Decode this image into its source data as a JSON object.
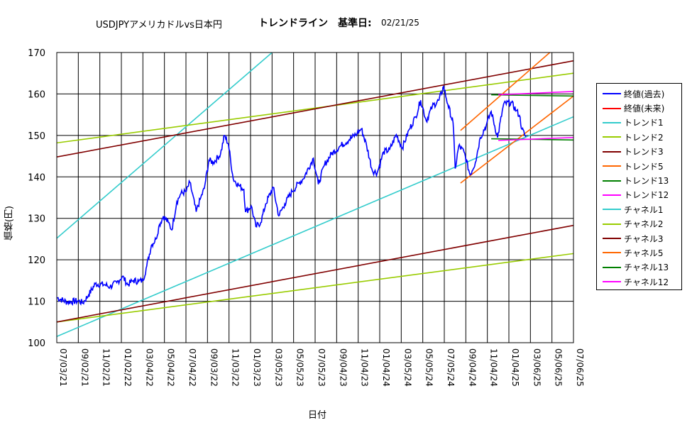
{
  "title": {
    "main": "USDJPYアメリカドルvs日本円",
    "sub": "トレンドライン　基準日:",
    "date": "02/21/25"
  },
  "chart_data": {
    "type": "line",
    "xlabel": "日付",
    "ylabel": "価格(円)",
    "ylim": [
      100,
      170
    ],
    "yticks": [
      100,
      110,
      120,
      130,
      140,
      150,
      160,
      170
    ],
    "x_tick_labels": [
      "07/03/21",
      "09/02/21",
      "11/02/21",
      "01/02/22",
      "03/04/22",
      "05/04/22",
      "07/04/22",
      "09/03/22",
      "11/03/22",
      "01/03/23",
      "03/05/23",
      "05/05/23",
      "07/05/23",
      "09/04/23",
      "11/04/23",
      "01/04/24",
      "03/05/24",
      "05/05/24",
      "07/05/24",
      "09/04/24",
      "11/04/24",
      "01/04/25",
      "03/06/25",
      "05/06/25",
      "07/06/25"
    ],
    "grid": true,
    "legend_position": "right",
    "price_series": {
      "name": "終値(過去)",
      "color": "#0000ff",
      "points": [
        [
          "07/03/21",
          110.9
        ],
        [
          "08/01/21",
          109.8
        ],
        [
          "09/01/21",
          110.1
        ],
        [
          "09/15/21",
          109.6
        ],
        [
          "10/01/21",
          111.5
        ],
        [
          "10/20/21",
          114.2
        ],
        [
          "11/15/21",
          114.0
        ],
        [
          "12/01/21",
          113.5
        ],
        [
          "12/20/21",
          114.5
        ],
        [
          "01/05/22",
          116.0
        ],
        [
          "01/20/22",
          114.0
        ],
        [
          "02/05/22",
          115.0
        ],
        [
          "02/20/22",
          114.8
        ],
        [
          "03/04/22",
          115.0
        ],
        [
          "03/15/22",
          118.5
        ],
        [
          "03/28/22",
          123.5
        ],
        [
          "04/10/22",
          125.0
        ],
        [
          "04/20/22",
          128.5
        ],
        [
          "05/01/22",
          130.5
        ],
        [
          "05/15/22",
          129.0
        ],
        [
          "05/25/22",
          127.2
        ],
        [
          "06/08/22",
          134.0
        ],
        [
          "06/20/22",
          136.0
        ],
        [
          "07/05/22",
          136.5
        ],
        [
          "07/15/22",
          138.7
        ],
        [
          "08/02/22",
          131.6
        ],
        [
          "08/15/22",
          135.0
        ],
        [
          "08/25/22",
          137.2
        ],
        [
          "09/07/22",
          144.0
        ],
        [
          "09/20/22",
          143.5
        ],
        [
          "10/10/22",
          145.5
        ],
        [
          "10/21/22",
          150.0
        ],
        [
          "11/01/22",
          148.0
        ],
        [
          "11/15/22",
          139.5
        ],
        [
          "11/30/22",
          138.0
        ],
        [
          "12/15/22",
          137.0
        ],
        [
          "12/20/22",
          131.5
        ],
        [
          "01/05/23",
          133.0
        ],
        [
          "01/18/23",
          128.0
        ],
        [
          "02/01/23",
          129.0
        ],
        [
          "02/15/23",
          133.5
        ],
        [
          "03/08/23",
          137.5
        ],
        [
          "03/24/23",
          130.6
        ],
        [
          "04/10/23",
          133.5
        ],
        [
          "05/01/23",
          136.5
        ],
        [
          "05/20/23",
          138.5
        ],
        [
          "06/01/23",
          139.5
        ],
        [
          "06/30/23",
          144.5
        ],
        [
          "07/14/23",
          138.2
        ],
        [
          "08/01/23",
          143.0
        ],
        [
          "08/20/23",
          145.5
        ],
        [
          "09/15/23",
          147.5
        ],
        [
          "10/10/23",
          149.0
        ],
        [
          "11/01/23",
          150.5
        ],
        [
          "11/13/23",
          151.6
        ],
        [
          "11/28/23",
          147.5
        ],
        [
          "12/14/23",
          141.5
        ],
        [
          "12/28/23",
          141.0
        ],
        [
          "01/15/24",
          146.0
        ],
        [
          "02/01/24",
          146.5
        ],
        [
          "02/20/24",
          150.2
        ],
        [
          "03/08/24",
          147.0
        ],
        [
          "03/28/24",
          151.5
        ],
        [
          "04/15/24",
          154.5
        ],
        [
          "04/29/24",
          158.5
        ],
        [
          "05/15/24",
          153.5
        ],
        [
          "06/01/24",
          157.0
        ],
        [
          "06/20/24",
          158.5
        ],
        [
          "07/03/24",
          161.8
        ],
        [
          "07/15/24",
          157.5
        ],
        [
          "07/30/24",
          153.0
        ],
        [
          "08/05/24",
          142.0
        ],
        [
          "08/15/24",
          147.5
        ],
        [
          "08/30/24",
          146.0
        ],
        [
          "09/16/24",
          140.5
        ],
        [
          "10/01/24",
          143.5
        ],
        [
          "10/15/24",
          149.5
        ],
        [
          "11/01/24",
          152.5
        ],
        [
          "11/15/24",
          155.8
        ],
        [
          "12/03/24",
          149.5
        ],
        [
          "12/20/24",
          157.5
        ],
        [
          "01/10/25",
          158.0
        ],
        [
          "01/25/25",
          156.0
        ],
        [
          "02/03/25",
          154.8
        ],
        [
          "02/10/25",
          151.5
        ],
        [
          "02/21/25",
          149.6
        ]
      ]
    },
    "future_series": {
      "name": "終値(未来)",
      "color": "#ff0000"
    },
    "trend_lines": [
      {
        "name": "トレンド1",
        "color": "#33cccc",
        "from": [
          "07/03/21",
          101.5
        ],
        "to": [
          "07/06/25",
          154.5
        ]
      },
      {
        "name": "トレンド2",
        "color": "#99cc00",
        "from": [
          "07/03/21",
          105.0
        ],
        "to": [
          "07/06/25",
          121.5
        ]
      },
      {
        "name": "トレンド3",
        "color": "#800000",
        "from": [
          "07/03/21",
          105.0
        ],
        "to": [
          "07/06/25",
          128.3
        ]
      },
      {
        "name": "トレンド5",
        "color": "#ff6600",
        "from": [
          "08/20/24",
          138.5
        ],
        "to": [
          "07/06/25",
          159.5
        ]
      },
      {
        "name": "トレンド13",
        "color": "#008000",
        "from": [
          "11/15/24",
          149.2
        ],
        "to": [
          "07/06/25",
          148.9
        ]
      },
      {
        "name": "トレンド12",
        "color": "#ff00ff",
        "from": [
          "12/05/24",
          148.8
        ],
        "to": [
          "07/06/25",
          149.5
        ]
      },
      {
        "name": "チャネル1",
        "color": "#33cccc",
        "from": [
          "07/03/21",
          125.2
        ],
        "to": [
          "03/05/23",
          170.0
        ]
      },
      {
        "name": "チャネル2",
        "color": "#99cc00",
        "from": [
          "07/03/21",
          148.2
        ],
        "to": [
          "07/06/25",
          165.0
        ]
      },
      {
        "name": "チャネル3",
        "color": "#800000",
        "from": [
          "07/03/21",
          144.8
        ],
        "to": [
          "07/06/25",
          168.0
        ]
      },
      {
        "name": "チャネル5",
        "color": "#ff6600",
        "from": [
          "08/20/24",
          151.2
        ],
        "to": [
          "04/30/25",
          170.0
        ]
      },
      {
        "name": "チャネル13",
        "color": "#008000",
        "from": [
          "11/15/24",
          159.8
        ],
        "to": [
          "07/06/25",
          159.5
        ]
      },
      {
        "name": "チャネル12",
        "color": "#ff00ff",
        "from": [
          "12/05/24",
          159.8
        ],
        "to": [
          "07/06/25",
          160.6
        ]
      }
    ]
  },
  "legend": [
    {
      "label": "終値(過去)",
      "color": "#0000ff"
    },
    {
      "label": "終値(未来)",
      "color": "#ff0000"
    },
    {
      "label": "トレンド1",
      "color": "#33cccc"
    },
    {
      "label": "トレンド2",
      "color": "#99cc00"
    },
    {
      "label": "トレンド3",
      "color": "#800000"
    },
    {
      "label": "トレンド5",
      "color": "#ff6600"
    },
    {
      "label": "トレンド13",
      "color": "#008000"
    },
    {
      "label": "トレンド12",
      "color": "#ff00ff"
    },
    {
      "label": "チャネル1",
      "color": "#33cccc"
    },
    {
      "label": "チャネル2",
      "color": "#99cc00"
    },
    {
      "label": "チャネル3",
      "color": "#800000"
    },
    {
      "label": "チャネル5",
      "color": "#ff6600"
    },
    {
      "label": "チャネル13",
      "color": "#008000"
    },
    {
      "label": "チャネル12",
      "color": "#ff00ff"
    }
  ]
}
